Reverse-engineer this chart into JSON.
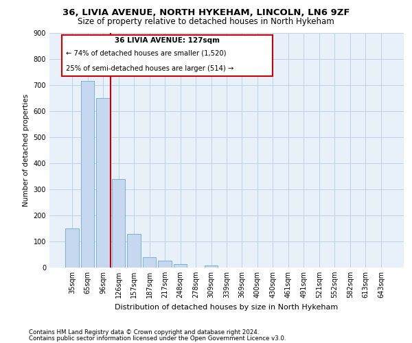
{
  "title_line1": "36, LIVIA AVENUE, NORTH HYKEHAM, LINCOLN, LN6 9ZF",
  "title_line2": "Size of property relative to detached houses in North Hykeham",
  "xlabel": "Distribution of detached houses by size in North Hykeham",
  "ylabel": "Number of detached properties",
  "footer_line1": "Contains HM Land Registry data © Crown copyright and database right 2024.",
  "footer_line2": "Contains public sector information licensed under the Open Government Licence v3.0.",
  "categories": [
    "35sqm",
    "65sqm",
    "96sqm",
    "126sqm",
    "157sqm",
    "187sqm",
    "217sqm",
    "248sqm",
    "278sqm",
    "309sqm",
    "339sqm",
    "369sqm",
    "400sqm",
    "430sqm",
    "461sqm",
    "491sqm",
    "521sqm",
    "552sqm",
    "582sqm",
    "613sqm",
    "643sqm"
  ],
  "values": [
    150,
    715,
    650,
    340,
    128,
    40,
    27,
    12,
    0,
    8,
    0,
    0,
    0,
    0,
    0,
    0,
    0,
    0,
    0,
    0,
    0
  ],
  "bar_color": "#c5d8f0",
  "bar_edge_color": "#7ab0d8",
  "ylim": [
    0,
    900
  ],
  "yticks": [
    0,
    100,
    200,
    300,
    400,
    500,
    600,
    700,
    800,
    900
  ],
  "property_line_x": 2.5,
  "annotation_text_line1": "36 LIVIA AVENUE: 127sqm",
  "annotation_text_line2": "← 74% of detached houses are smaller (1,520)",
  "annotation_text_line3": "25% of semi-detached houses are larger (514) →",
  "annotation_box_color": "#ffffff",
  "annotation_box_edge_color": "#cc0000",
  "annotation_line_color": "#cc0000",
  "fig_bg_color": "#ffffff",
  "plot_bg_color": "#e8f0fa"
}
